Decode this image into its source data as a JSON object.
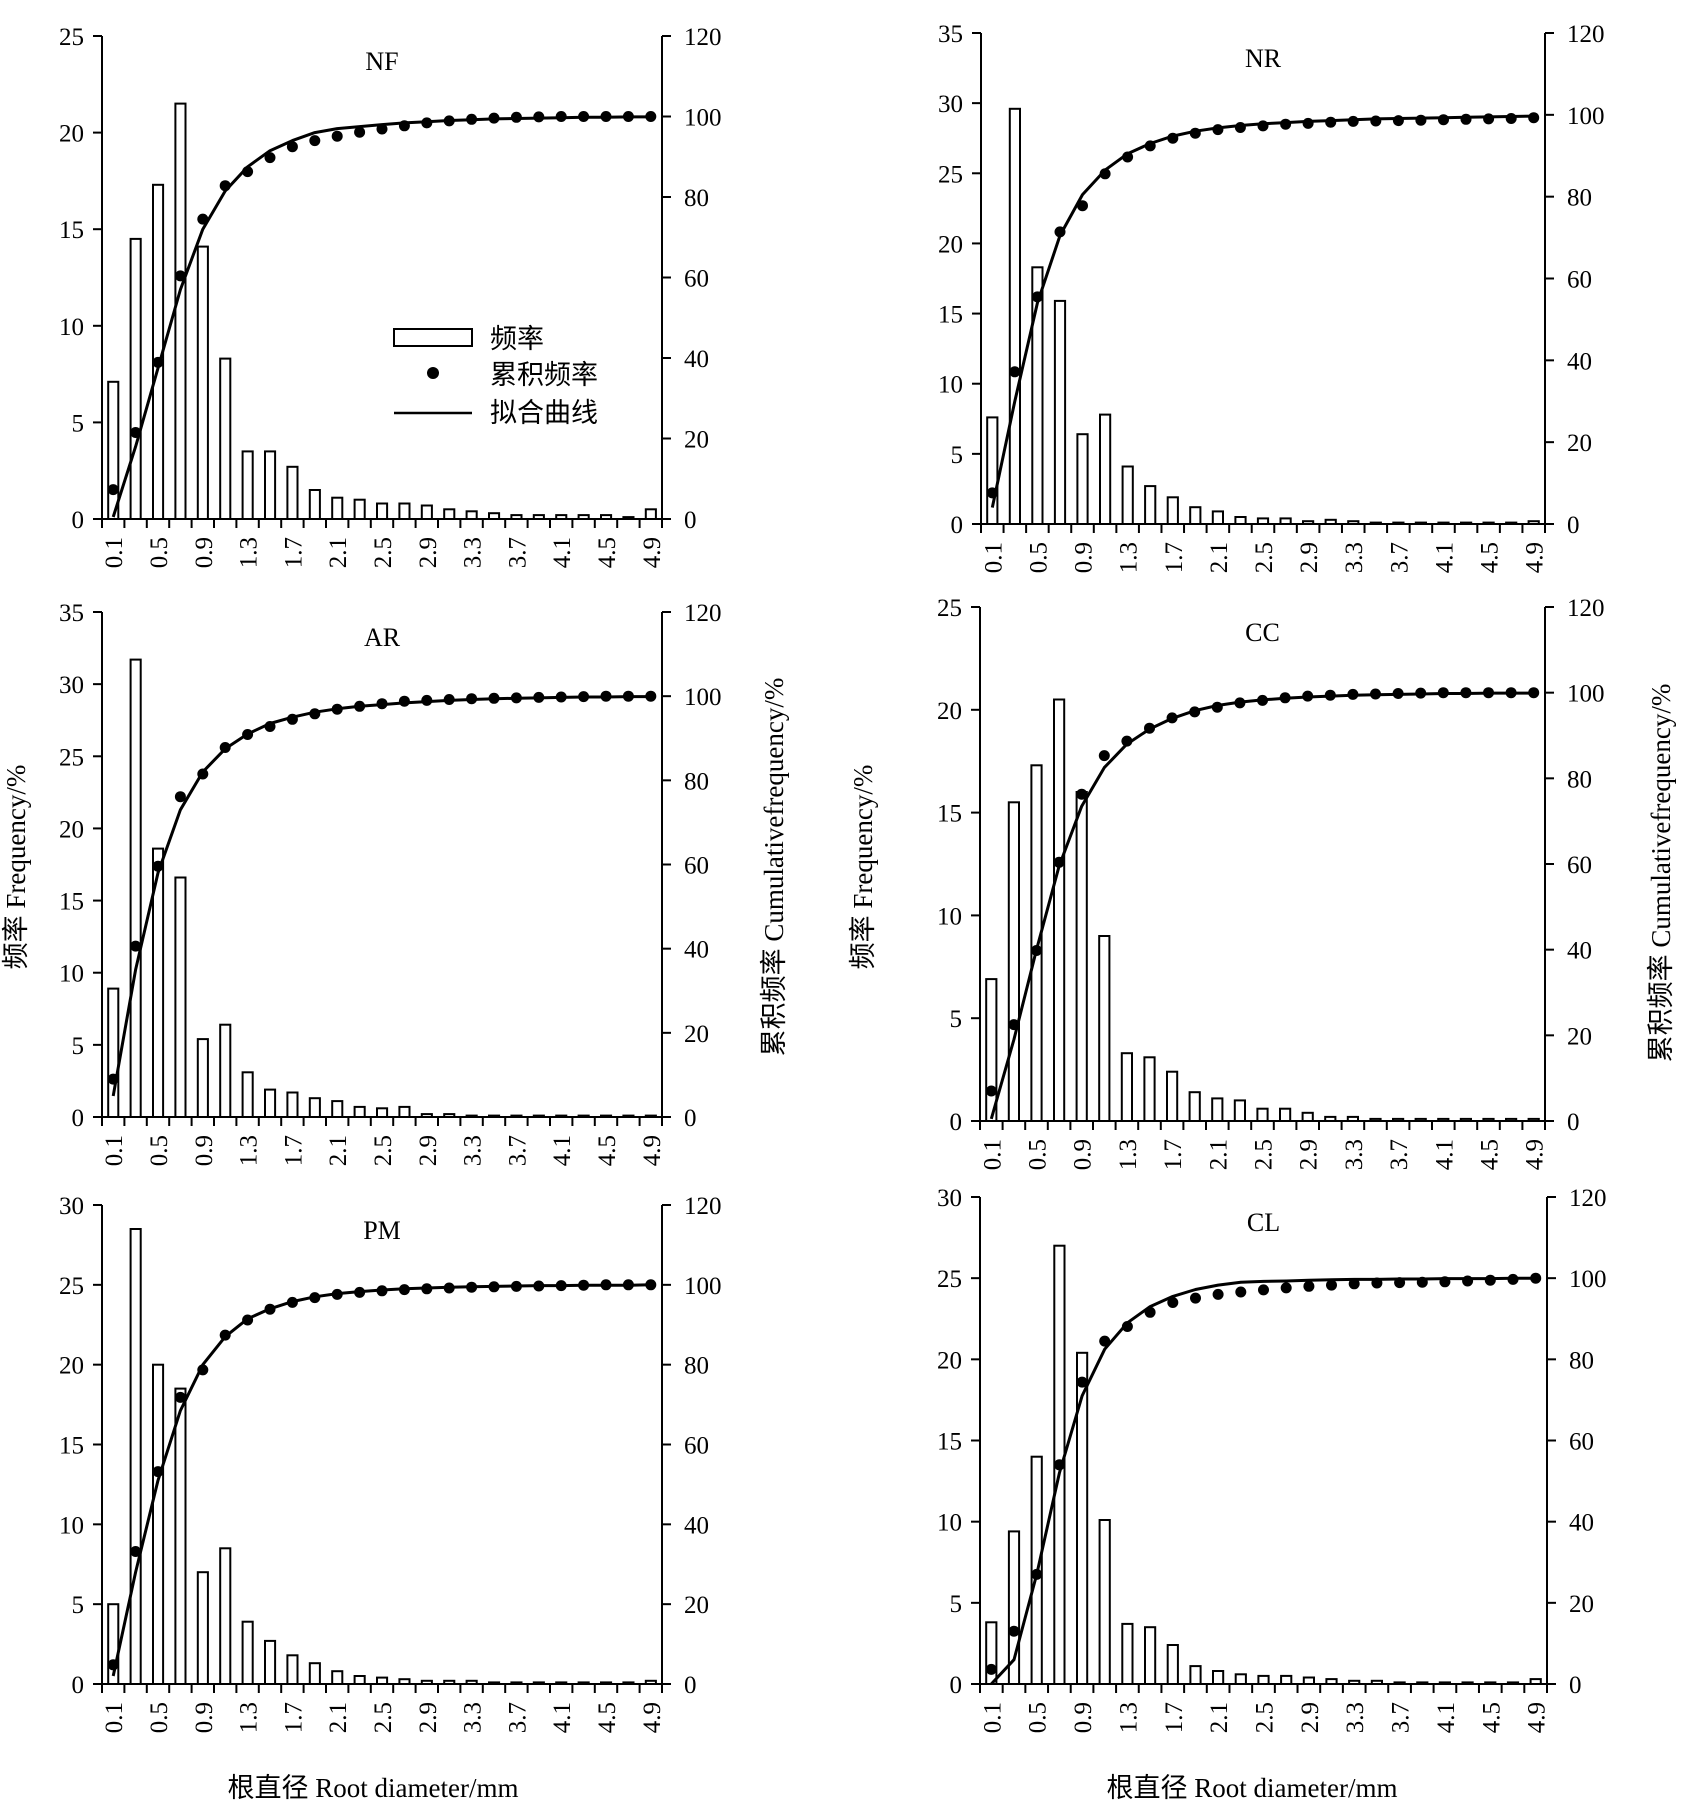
{
  "figure": {
    "x_axis_title": "根直径 Root diameter/mm",
    "left_y_axis_title": "频率 Frequency/%",
    "right_y_axis_title": "累积频率 Cumulativefrequency/%"
  },
  "legend": {
    "items": [
      {
        "label": "频率",
        "symbol": "bar"
      },
      {
        "label": "累积频率",
        "symbol": "dot"
      },
      {
        "label": "拟合曲线",
        "symbol": "line"
      }
    ]
  },
  "chart_data": [
    {
      "type": "bar",
      "title": "NF",
      "x": [
        0.1,
        0.3,
        0.5,
        0.7,
        0.9,
        1.1,
        1.3,
        1.5,
        1.7,
        1.9,
        2.1,
        2.3,
        2.5,
        2.7,
        2.9,
        3.1,
        3.3,
        3.5,
        3.7,
        3.9,
        4.1,
        4.3,
        4.5,
        4.7,
        4.9
      ],
      "x_tick_labels": [
        "0.1",
        "0.5",
        "0.9",
        "1.3",
        "1.7",
        "2.1",
        "2.5",
        "2.9",
        "3.3",
        "3.7",
        "4.1",
        "4.5",
        "4.9"
      ],
      "left_ylim": [
        0,
        25
      ],
      "left_yticks": [
        0,
        5,
        10,
        15,
        20,
        25
      ],
      "right_ylim": [
        0,
        120
      ],
      "right_yticks": [
        0,
        20,
        40,
        60,
        80,
        100,
        120
      ],
      "series": [
        {
          "name": "频率",
          "kind": "bar",
          "axis": "left",
          "values": [
            7.1,
            14.5,
            17.3,
            21.5,
            14.1,
            8.3,
            3.5,
            3.5,
            2.7,
            1.5,
            1.1,
            1.0,
            0.8,
            0.8,
            0.7,
            0.5,
            0.4,
            0.3,
            0.2,
            0.2,
            0.2,
            0.2,
            0.2,
            0.1,
            0.5
          ]
        },
        {
          "name": "累积频率",
          "kind": "scatter",
          "axis": "right",
          "values": [
            7.3,
            21.5,
            38.9,
            60.4,
            74.5,
            82.8,
            86.3,
            89.8,
            92.5,
            94.0,
            95.1,
            96.1,
            96.9,
            97.7,
            98.4,
            98.9,
            99.3,
            99.6,
            99.8,
            99.9,
            100.0,
            100.0,
            100.0,
            100.0,
            100.0
          ]
        },
        {
          "name": "拟合曲线",
          "kind": "line",
          "axis": "right",
          "values": [
            0.5,
            18.0,
            37.5,
            57.0,
            72.0,
            81.5,
            87.5,
            91.5,
            94.0,
            96.0,
            97.0,
            97.5,
            98.0,
            98.4,
            98.7,
            99.0,
            99.2,
            99.4,
            99.5,
            99.6,
            99.7,
            99.8,
            99.8,
            99.9,
            99.9
          ]
        }
      ]
    },
    {
      "type": "bar",
      "title": "NR",
      "x": [
        0.1,
        0.3,
        0.5,
        0.7,
        0.9,
        1.1,
        1.3,
        1.5,
        1.7,
        1.9,
        2.1,
        2.3,
        2.5,
        2.7,
        2.9,
        3.1,
        3.3,
        3.5,
        3.7,
        3.9,
        4.1,
        4.3,
        4.5,
        4.7,
        4.9
      ],
      "x_tick_labels": [
        "0.1",
        "0.5",
        "0.9",
        "1.3",
        "1.7",
        "2.1",
        "2.5",
        "2.9",
        "3.3",
        "3.7",
        "4.1",
        "4.5",
        "4.9"
      ],
      "left_ylim": [
        0,
        35
      ],
      "left_yticks": [
        0,
        5,
        10,
        15,
        20,
        25,
        30,
        35
      ],
      "right_ylim": [
        0,
        120
      ],
      "right_yticks": [
        0,
        20,
        40,
        60,
        80,
        100,
        120
      ],
      "series": [
        {
          "name": "频率",
          "kind": "bar",
          "axis": "left",
          "values": [
            7.6,
            29.6,
            18.3,
            15.9,
            6.4,
            7.8,
            4.1,
            2.7,
            1.9,
            1.2,
            0.9,
            0.5,
            0.4,
            0.4,
            0.2,
            0.3,
            0.2,
            0.1,
            0.1,
            0.1,
            0.1,
            0.1,
            0.1,
            0.1,
            0.2
          ]
        },
        {
          "name": "累积频率",
          "kind": "scatter",
          "axis": "right",
          "values": [
            7.6,
            37.2,
            55.5,
            71.4,
            77.8,
            85.6,
            89.7,
            92.4,
            94.3,
            95.5,
            96.4,
            96.9,
            97.3,
            97.7,
            97.9,
            98.2,
            98.4,
            98.5,
            98.6,
            98.7,
            98.8,
            98.9,
            99.0,
            99.1,
            99.3
          ]
        },
        {
          "name": "拟合曲线",
          "kind": "line",
          "axis": "right",
          "values": [
            4.0,
            30.0,
            54.0,
            70.5,
            80.5,
            86.5,
            90.5,
            93.0,
            94.8,
            96.0,
            96.8,
            97.4,
            97.8,
            98.1,
            98.4,
            98.6,
            98.8,
            99.0,
            99.1,
            99.2,
            99.3,
            99.4,
            99.5,
            99.6,
            99.7
          ]
        }
      ]
    },
    {
      "type": "bar",
      "title": "AR",
      "x": [
        0.1,
        0.3,
        0.5,
        0.7,
        0.9,
        1.1,
        1.3,
        1.5,
        1.7,
        1.9,
        2.1,
        2.3,
        2.5,
        2.7,
        2.9,
        3.1,
        3.3,
        3.5,
        3.7,
        3.9,
        4.1,
        4.3,
        4.5,
        4.7,
        4.9
      ],
      "x_tick_labels": [
        "0.1",
        "0.5",
        "0.9",
        "1.3",
        "1.7",
        "2.1",
        "2.5",
        "2.9",
        "3.3",
        "3.7",
        "4.1",
        "4.5",
        "4.9"
      ],
      "left_ylim": [
        0,
        35
      ],
      "left_yticks": [
        0,
        5,
        10,
        15,
        20,
        25,
        30,
        35
      ],
      "right_ylim": [
        0,
        120
      ],
      "right_yticks": [
        0,
        20,
        40,
        60,
        80,
        100,
        120
      ],
      "series": [
        {
          "name": "频率",
          "kind": "bar",
          "axis": "left",
          "values": [
            8.9,
            31.7,
            18.6,
            16.6,
            5.4,
            6.4,
            3.1,
            1.9,
            1.7,
            1.3,
            1.1,
            0.7,
            0.6,
            0.7,
            0.2,
            0.2,
            0.1,
            0.1,
            0.1,
            0.1,
            0.1,
            0.1,
            0.1,
            0.1,
            0.1
          ]
        },
        {
          "name": "累积频率",
          "kind": "scatter",
          "axis": "right",
          "values": [
            9.0,
            40.6,
            59.6,
            76.1,
            81.5,
            87.8,
            90.9,
            92.8,
            94.5,
            95.8,
            96.9,
            97.6,
            98.2,
            98.8,
            99.0,
            99.2,
            99.4,
            99.5,
            99.6,
            99.7,
            99.8,
            99.9,
            100.0,
            100.0,
            100.0
          ]
        },
        {
          "name": "拟合曲线",
          "kind": "line",
          "axis": "right",
          "values": [
            5.0,
            35.0,
            58.0,
            73.0,
            82.0,
            87.5,
            91.0,
            93.5,
            95.0,
            96.2,
            97.0,
            97.6,
            98.0,
            98.4,
            98.7,
            99.0,
            99.2,
            99.4,
            99.5,
            99.6,
            99.7,
            99.8,
            99.8,
            99.9,
            99.9
          ]
        }
      ]
    },
    {
      "type": "bar",
      "title": "CC",
      "x": [
        0.1,
        0.3,
        0.5,
        0.7,
        0.9,
        1.1,
        1.3,
        1.5,
        1.7,
        1.9,
        2.1,
        2.3,
        2.5,
        2.7,
        2.9,
        3.1,
        3.3,
        3.5,
        3.7,
        3.9,
        4.1,
        4.3,
        4.5,
        4.7,
        4.9
      ],
      "x_tick_labels": [
        "0.1",
        "0.5",
        "0.9",
        "1.3",
        "1.7",
        "2.1",
        "2.5",
        "2.9",
        "3.3",
        "3.7",
        "4.1",
        "4.5",
        "4.9"
      ],
      "left_ylim": [
        0,
        25
      ],
      "left_yticks": [
        0,
        5,
        10,
        15,
        20,
        25
      ],
      "right_ylim": [
        0,
        120
      ],
      "right_yticks": [
        0,
        20,
        40,
        60,
        80,
        100,
        120
      ],
      "series": [
        {
          "name": "频率",
          "kind": "bar",
          "axis": "left",
          "values": [
            6.9,
            15.5,
            17.3,
            20.5,
            16.0,
            9.0,
            3.3,
            3.1,
            2.4,
            1.4,
            1.1,
            1.0,
            0.6,
            0.6,
            0.4,
            0.2,
            0.2,
            0.1,
            0.1,
            0.1,
            0.1,
            0.1,
            0.1,
            0.1,
            0.1
          ]
        },
        {
          "name": "累积频率",
          "kind": "scatter",
          "axis": "right",
          "values": [
            7.0,
            22.5,
            39.8,
            60.4,
            76.3,
            85.3,
            88.7,
            91.7,
            94.1,
            95.5,
            96.6,
            97.6,
            98.2,
            98.8,
            99.2,
            99.4,
            99.6,
            99.7,
            99.8,
            99.9,
            100.0,
            100.0,
            100.0,
            100.0,
            100.0
          ]
        },
        {
          "name": "拟合曲线",
          "kind": "line",
          "axis": "right",
          "values": [
            0.5,
            19.0,
            40.0,
            59.5,
            73.5,
            82.5,
            88.0,
            91.5,
            94.0,
            95.8,
            97.0,
            97.8,
            98.3,
            98.7,
            99.0,
            99.2,
            99.4,
            99.5,
            99.6,
            99.7,
            99.8,
            99.8,
            99.9,
            99.9,
            99.9
          ]
        }
      ]
    },
    {
      "type": "bar",
      "title": "PM",
      "x": [
        0.1,
        0.3,
        0.5,
        0.7,
        0.9,
        1.1,
        1.3,
        1.5,
        1.7,
        1.9,
        2.1,
        2.3,
        2.5,
        2.7,
        2.9,
        3.1,
        3.3,
        3.5,
        3.7,
        3.9,
        4.1,
        4.3,
        4.5,
        4.7,
        4.9
      ],
      "x_tick_labels": [
        "0.1",
        "0.5",
        "0.9",
        "1.3",
        "1.7",
        "2.1",
        "2.5",
        "2.9",
        "3.3",
        "3.7",
        "4.1",
        "4.5",
        "4.9"
      ],
      "left_ylim": [
        0,
        30
      ],
      "left_yticks": [
        0,
        5,
        10,
        15,
        20,
        25,
        30
      ],
      "right_ylim": [
        0,
        120
      ],
      "right_yticks": [
        0,
        20,
        40,
        60,
        80,
        100,
        120
      ],
      "series": [
        {
          "name": "频率",
          "kind": "bar",
          "axis": "left",
          "values": [
            5.0,
            28.5,
            20.0,
            18.5,
            7.0,
            8.5,
            3.9,
            2.7,
            1.8,
            1.3,
            0.8,
            0.5,
            0.4,
            0.3,
            0.2,
            0.2,
            0.2,
            0.1,
            0.1,
            0.1,
            0.1,
            0.1,
            0.1,
            0.1,
            0.2
          ]
        },
        {
          "name": "累积频率",
          "kind": "scatter",
          "axis": "right",
          "values": [
            4.8,
            33.2,
            53.2,
            71.8,
            78.7,
            87.4,
            91.2,
            93.9,
            95.6,
            96.8,
            97.6,
            98.1,
            98.5,
            98.8,
            99.0,
            99.2,
            99.4,
            99.5,
            99.6,
            99.7,
            99.8,
            99.9,
            100.0,
            100.0,
            100.0
          ]
        },
        {
          "name": "拟合曲线",
          "kind": "line",
          "axis": "right",
          "values": [
            2.0,
            28.0,
            51.0,
            68.5,
            80.0,
            87.0,
            91.5,
            94.0,
            95.8,
            97.0,
            97.8,
            98.3,
            98.7,
            99.0,
            99.2,
            99.4,
            99.5,
            99.6,
            99.7,
            99.8,
            99.8,
            99.9,
            99.9,
            99.9,
            100.0
          ]
        }
      ]
    },
    {
      "type": "bar",
      "title": "CL",
      "x": [
        0.1,
        0.3,
        0.5,
        0.7,
        0.9,
        1.1,
        1.3,
        1.5,
        1.7,
        1.9,
        2.1,
        2.3,
        2.5,
        2.7,
        2.9,
        3.1,
        3.3,
        3.5,
        3.7,
        3.9,
        4.1,
        4.3,
        4.5,
        4.7,
        4.9
      ],
      "x_tick_labels": [
        "0.1",
        "0.5",
        "0.9",
        "1.3",
        "1.7",
        "2.1",
        "2.5",
        "2.9",
        "3.3",
        "3.7",
        "4.1",
        "4.5",
        "4.9"
      ],
      "left_ylim": [
        0,
        30
      ],
      "left_yticks": [
        0,
        5,
        10,
        15,
        20,
        25,
        30
      ],
      "right_ylim": [
        0,
        120
      ],
      "right_yticks": [
        0,
        20,
        40,
        60,
        80,
        100,
        120
      ],
      "series": [
        {
          "name": "频率",
          "kind": "bar",
          "axis": "left",
          "values": [
            3.8,
            9.4,
            14.0,
            27.0,
            20.4,
            10.1,
            3.7,
            3.5,
            2.4,
            1.1,
            0.8,
            0.6,
            0.5,
            0.5,
            0.4,
            0.3,
            0.2,
            0.2,
            0.1,
            0.1,
            0.1,
            0.1,
            0.1,
            0.1,
            0.3
          ]
        },
        {
          "name": "累积频率",
          "kind": "scatter",
          "axis": "right",
          "values": [
            3.6,
            13.0,
            27.0,
            54.0,
            74.4,
            84.5,
            88.1,
            91.6,
            94.0,
            95.1,
            96.0,
            96.6,
            97.1,
            97.6,
            98.0,
            98.3,
            98.6,
            98.8,
            98.9,
            99.0,
            99.1,
            99.3,
            99.5,
            99.7,
            100.0
          ]
        },
        {
          "name": "拟合曲线",
          "kind": "line",
          "axis": "right",
          "values": [
            0.0,
            6.0,
            27.0,
            52.0,
            71.0,
            82.5,
            89.0,
            93.0,
            95.5,
            97.2,
            98.3,
            99.0,
            99.2,
            99.3,
            99.5,
            99.6,
            99.7,
            99.7,
            99.8,
            99.8,
            99.9,
            99.9,
            99.9,
            100.0,
            100.0
          ]
        }
      ]
    }
  ]
}
